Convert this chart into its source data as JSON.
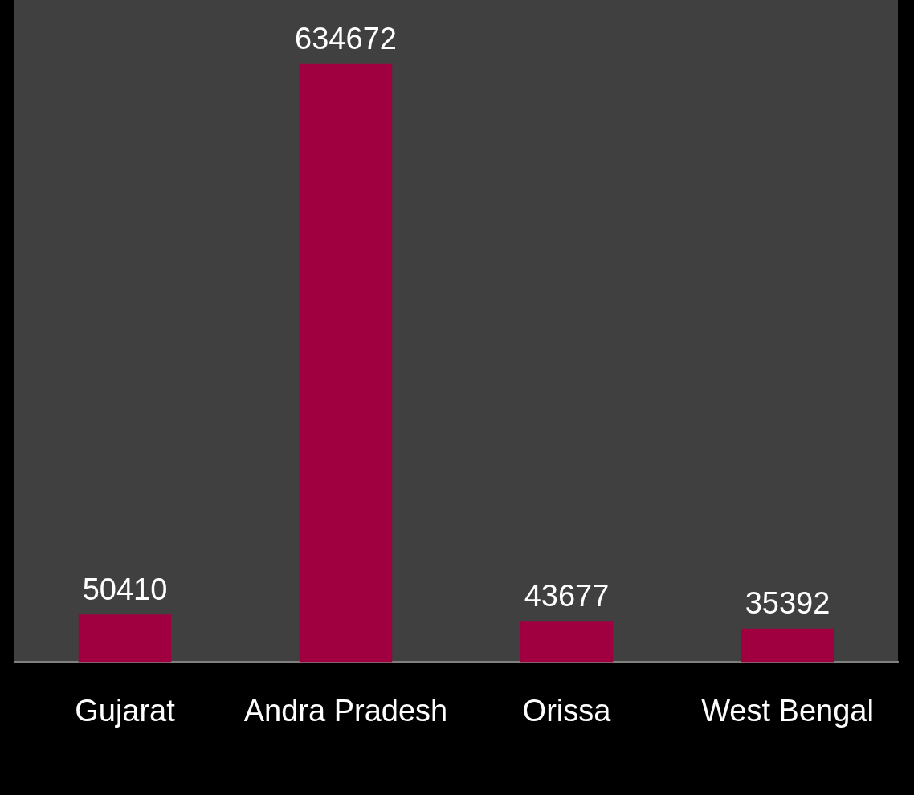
{
  "chart_data": {
    "type": "bar",
    "categories": [
      "Gujarat",
      "Andra Pradesh",
      "Orissa",
      "West Bengal"
    ],
    "values": [
      50410,
      634672,
      43677,
      35392
    ],
    "color": "#a0003f",
    "data_labels": true,
    "grid": false,
    "legend": false,
    "tick_labels": "x"
  }
}
